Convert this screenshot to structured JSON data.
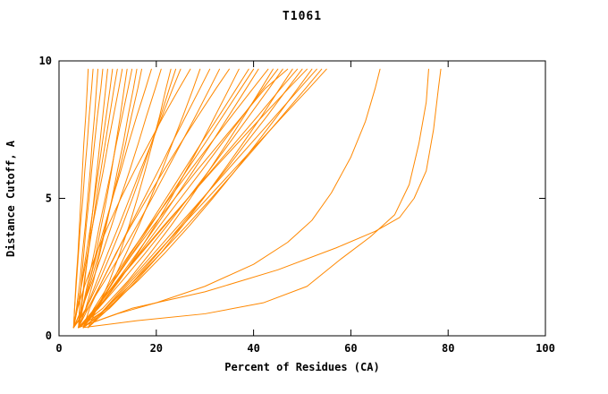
{
  "chart_data": {
    "type": "line",
    "title": "T1061",
    "xlabel": "Percent of Residues (CA)",
    "ylabel": "Distance Cutoff, A",
    "xlim": [
      0,
      100
    ],
    "ylim": [
      0,
      10
    ],
    "xticks": [
      0,
      20,
      40,
      60,
      80,
      100
    ],
    "yticks": [
      0,
      5,
      10
    ],
    "grid": false,
    "legend": "none",
    "line_color": "#ff8800",
    "axis_color": "#000000",
    "default_y": [
      0.3,
      1,
      2,
      3,
      4,
      5,
      6,
      7,
      8,
      9,
      9.7
    ],
    "series": [
      {
        "x": [
          3,
          3.2,
          3.5,
          3.9,
          4.2,
          4.5,
          4.8,
          5.1,
          5.5,
          5.8,
          6
        ]
      },
      {
        "x": [
          3,
          3.6,
          4.3,
          4.8,
          5.4,
          5.9,
          6.4,
          6.8,
          7.3,
          7.7,
          8
        ]
      },
      {
        "x": [
          4,
          4.2,
          4.6,
          5.1,
          5.6,
          6.2,
          6.7,
          7.3,
          7.9,
          8.6,
          9
        ]
      },
      {
        "x": [
          3,
          3.8,
          4.7,
          5.6,
          6.5,
          7.3,
          8.1,
          8.9,
          9.7,
          10.5,
          11
        ]
      },
      {
        "x": [
          4,
          4.5,
          5.2,
          6,
          6.9,
          7.7,
          8.6,
          9.5,
          10.4,
          11.3,
          12
        ]
      },
      {
        "x": [
          3,
          4.8,
          6.3,
          7.6,
          8.7,
          9.8,
          10.8,
          11.7,
          12.6,
          13.4,
          14
        ]
      },
      {
        "x": [
          4,
          4.8,
          6,
          7.2,
          8.3,
          9.5,
          10.7,
          11.8,
          13,
          14.2,
          15
        ]
      },
      {
        "x": [
          3,
          4.8,
          6.6,
          8.2,
          9.6,
          11,
          12.4,
          13.7,
          14.9,
          16.2,
          17
        ]
      },
      {
        "x": [
          4,
          4.9,
          6.3,
          7.8,
          9.4,
          11,
          12.7,
          14.3,
          16,
          17.8,
          19
        ]
      },
      {
        "x": [
          3,
          4.7,
          6.9,
          8.9,
          10.8,
          12.6,
          14.5,
          16.3,
          18,
          19.8,
          21
        ]
      },
      {
        "x": [
          5,
          7.9,
          10.4,
          12.5,
          14.4,
          16.1,
          17.7,
          19.2,
          20.7,
          22,
          23
        ]
      },
      {
        "x": [
          4,
          5.6,
          7.8,
          10,
          12.3,
          14.5,
          16.7,
          19,
          21.2,
          23.4,
          25
        ]
      },
      {
        "x": [
          3,
          3.8,
          5.6,
          7.7,
          10.1,
          12.7,
          15.5,
          18.5,
          21.5,
          24.7,
          27
        ]
      },
      {
        "x": [
          5,
          8,
          11.1,
          13.8,
          16.4,
          18.8,
          21.1,
          23.3,
          25.5,
          27.6,
          29
        ]
      },
      {
        "x": [
          4,
          6,
          8.9,
          11.8,
          14.6,
          17.5,
          20.4,
          23.2,
          26.1,
          29,
          31
        ]
      },
      {
        "x": [
          3,
          5.9,
          9.4,
          12.8,
          16,
          19.1,
          22.1,
          25.1,
          28.1,
          31,
          33
        ]
      },
      {
        "x": [
          5,
          6.3,
          8.9,
          11.7,
          14.8,
          18.1,
          21.5,
          25,
          28.6,
          32.3,
          35
        ]
      },
      {
        "x": [
          4,
          8.1,
          12.4,
          16.2,
          19.7,
          23,
          26.1,
          29.2,
          32.1,
          35,
          37
        ]
      },
      {
        "x": [
          5,
          7.5,
          11.2,
          14.8,
          18.4,
          22,
          25.6,
          29.2,
          32.9,
          36.5,
          39
        ]
      },
      {
        "x": [
          4,
          7.6,
          11.9,
          16,
          20,
          23.8,
          27.6,
          31.3,
          34.9,
          38.5,
          41
        ]
      },
      {
        "x": [
          5,
          7.2,
          10.8,
          14.6,
          18.6,
          22.7,
          26.9,
          31.2,
          35.5,
          39.9,
          43
        ]
      },
      {
        "x": [
          4,
          9,
          14.2,
          18.7,
          23,
          27,
          30.8,
          34.5,
          38.1,
          41.6,
          44
        ]
      },
      {
        "x": [
          5,
          8,
          12.2,
          16.5,
          20.7,
          25,
          29.3,
          33.5,
          37.8,
          42,
          45
        ]
      },
      {
        "x": [
          4,
          8.1,
          13,
          17.7,
          22.2,
          26.5,
          30.8,
          35,
          39.1,
          43.2,
          46
        ]
      },
      {
        "x": [
          6,
          7.8,
          11.3,
          15.2,
          19.4,
          23.8,
          28.3,
          33,
          37.7,
          42.4,
          47
        ]
      },
      {
        "x": [
          5,
          10.4,
          15.9,
          20.9,
          25.4,
          29.7,
          33.8,
          37.8,
          41.7,
          45.4,
          48
        ]
      },
      {
        "x": [
          4,
          7.4,
          12.1,
          16.9,
          21.7,
          26.5,
          31.3,
          36.1,
          40.9,
          45.6,
          49
        ]
      },
      {
        "x": [
          6,
          10.3,
          15.4,
          20.3,
          25,
          29.6,
          34.1,
          38.4,
          42.8,
          47,
          50
        ]
      },
      {
        "x": [
          5,
          7.6,
          12,
          16.7,
          21.5,
          26.5,
          31.5,
          36.7,
          41.9,
          47.2,
          51
        ]
      },
      {
        "x": [
          4,
          10,
          16.2,
          21.7,
          26.8,
          31.6,
          36.2,
          40.6,
          44.9,
          49.1,
          52
        ]
      },
      {
        "x": [
          6,
          9.5,
          14.5,
          19.5,
          24.5,
          29.5,
          34.5,
          39.5,
          44.5,
          49.5,
          53
        ]
      },
      {
        "x": [
          5,
          9.7,
          15.5,
          20.9,
          26.2,
          31.3,
          36.2,
          41.1,
          45.9,
          50.7,
          54
        ]
      },
      {
        "x": [
          6,
          9.7,
          14.9,
          20.1,
          25.3,
          30.5,
          35.7,
          40.9,
          46.1,
          51.4,
          55
        ]
      },
      {
        "x": [
          3,
          3.2,
          3.6,
          4,
          4.4,
          4.9,
          5.3,
          5.8,
          6.2,
          6.7,
          7
        ]
      },
      {
        "x": [
          4,
          4.6,
          5.3,
          6,
          6.6,
          7.2,
          7.8,
          8.4,
          9,
          9.6,
          10
        ]
      },
      {
        "x": [
          3,
          3.7,
          4.8,
          5.9,
          6.9,
          8,
          9.1,
          10.1,
          11.2,
          12.3,
          13
        ]
      },
      {
        "x": [
          4,
          5.5,
          7.1,
          8.4,
          9.7,
          10.9,
          12,
          13.2,
          14.2,
          15.3,
          16
        ]
      },
      {
        "x": [
          3,
          5.6,
          8.3,
          10.7,
          13,
          15.1,
          17.1,
          19,
          20.9,
          22.7,
          24
        ]
      },
      {
        "x": [
          5,
          7.6,
          11.3,
          15.1,
          18.8,
          22.5,
          26.2,
          30,
          33.7,
          37.4,
          40
        ]
      },
      {
        "x": [
          5,
          16,
          30,
          42,
          51,
          58,
          64,
          69,
          72,
          74,
          75.5,
          76
        ],
        "y": [
          0.3,
          0.55,
          0.8,
          1.2,
          1.8,
          2.8,
          3.6,
          4.4,
          5.5,
          7,
          8.5,
          9.7
        ]
      },
      {
        "x": [
          4,
          12,
          20,
          30,
          40,
          47,
          52,
          56,
          60,
          63,
          65,
          66
        ],
        "y": [
          0.3,
          0.8,
          1.2,
          1.8,
          2.6,
          3.4,
          4.2,
          5.2,
          6.5,
          7.8,
          9,
          9.7
        ]
      },
      {
        "x": [
          4,
          15,
          30,
          45,
          57,
          65,
          70,
          73,
          75.5,
          77,
          78,
          78.5
        ],
        "y": [
          0.3,
          1,
          1.6,
          2.4,
          3.2,
          3.8,
          4.3,
          5,
          6,
          7.5,
          9,
          9.7
        ]
      }
    ]
  }
}
